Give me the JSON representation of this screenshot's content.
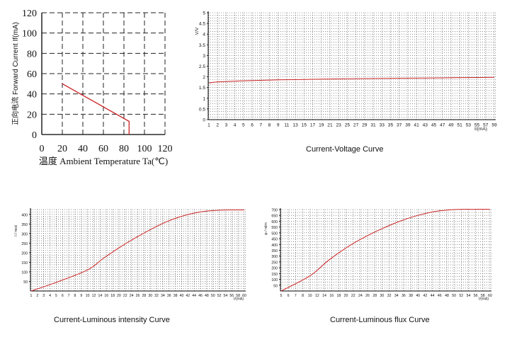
{
  "captions": {
    "iv": "Current-Voltage Curve",
    "lum_intensity": "Current-Luminous intensity Curve",
    "lum_flux": "Current-Luminous flux Curve"
  },
  "colors": {
    "curve": "#cc2222",
    "axis": "#000000",
    "grid": "#444444"
  },
  "chart_data": [
    {
      "id": "derating",
      "type": "line",
      "title": "",
      "xlabel": "温度 Ambient Temperature Ta(℃)",
      "ylabel": "正向电流 Forward Current If(mA)",
      "xlim": [
        0,
        120
      ],
      "ylim": [
        0,
        120
      ],
      "xticks": [
        "0",
        "20",
        "40",
        "60",
        "80",
        "100",
        "120"
      ],
      "yticks": [
        "0",
        "20",
        "40",
        "60",
        "80",
        "100",
        "120"
      ],
      "grid": true,
      "series": [
        {
          "x": [
            20,
            85,
            85
          ],
          "y": [
            50,
            13,
            0
          ]
        }
      ]
    },
    {
      "id": "iv",
      "type": "line",
      "title": "Current-Voltage Curve",
      "xlabel": "I/(mA)",
      "ylabel": "V/V",
      "xlim": [
        1,
        60
      ],
      "ylim": [
        0,
        5
      ],
      "xticks": [
        "1",
        "2",
        "3",
        "4",
        "5",
        "6",
        "7",
        "8",
        "9",
        "11",
        "13",
        "15",
        "17",
        "19",
        "21",
        "23",
        "25",
        "27",
        "29",
        "31",
        "33",
        "35",
        "37",
        "39",
        "41",
        "43",
        "45",
        "47",
        "49",
        "51",
        "53",
        "55",
        "57",
        "59"
      ],
      "yticks": [
        "0",
        "0.5",
        "1",
        "1.5",
        "2",
        "2.5",
        "3",
        "3.5",
        "4",
        "4.5",
        "5"
      ],
      "grid": true,
      "series": [
        {
          "x": [
            1,
            2,
            4,
            6,
            9,
            15,
            21,
            30,
            40,
            50,
            60
          ],
          "y": [
            1.72,
            1.76,
            1.8,
            1.83,
            1.86,
            1.88,
            1.9,
            1.92,
            1.94,
            1.96,
            1.98
          ]
        }
      ]
    },
    {
      "id": "lum_intensity",
      "type": "line",
      "title": "Current-Luminous intensity Curve",
      "xlabel": "I/(mA)",
      "ylabel": "I / mcd",
      "xlim": [
        1,
        60
      ],
      "ylim": [
        0,
        425
      ],
      "xticks": [
        "1",
        "2",
        "3",
        "4",
        "5",
        "6",
        "7",
        "8",
        "9",
        "10",
        "12",
        "14",
        "16",
        "18",
        "20",
        "22",
        "24",
        "26",
        "28",
        "30",
        "32",
        "34",
        "36",
        "38",
        "40",
        "42",
        "44",
        "46",
        "48",
        "50",
        "52",
        "54",
        "56",
        "58",
        "60"
      ],
      "yticks": [
        "50",
        "100",
        "150",
        "200",
        "250",
        "300",
        "350",
        "400"
      ],
      "grid": true,
      "series": [
        {
          "x": [
            1,
            5,
            10,
            15,
            20,
            25,
            30,
            35,
            40,
            45,
            50,
            55,
            60
          ],
          "y": [
            0,
            45,
            110,
            170,
            225,
            275,
            320,
            360,
            390,
            410,
            420,
            423,
            423
          ]
        }
      ]
    },
    {
      "id": "lum_flux",
      "type": "line",
      "title": "Current-Luminous flux Curve",
      "xlabel": "I/(mA)",
      "ylabel": "φ / mlm",
      "xlim": [
        5,
        60
      ],
      "ylim": [
        0,
        700
      ],
      "xticks": [
        "5",
        "6",
        "7",
        "8",
        "10",
        "12",
        "14",
        "16",
        "18",
        "20",
        "22",
        "24",
        "26",
        "28",
        "30",
        "32",
        "34",
        "36",
        "38",
        "40",
        "42",
        "44",
        "46",
        "48",
        "50",
        "52",
        "54",
        "56",
        "58",
        "60"
      ],
      "yticks": [
        "50",
        "100",
        "150",
        "200",
        "250",
        "300",
        "350",
        "400",
        "450",
        "500",
        "550",
        "600",
        "650",
        "700"
      ],
      "grid": true,
      "series": [
        {
          "x": [
            5,
            10,
            15,
            20,
            25,
            30,
            35,
            40,
            45,
            50,
            55,
            60
          ],
          "y": [
            0,
            130,
            260,
            370,
            460,
            535,
            600,
            650,
            685,
            700,
            702,
            702
          ]
        }
      ]
    }
  ]
}
